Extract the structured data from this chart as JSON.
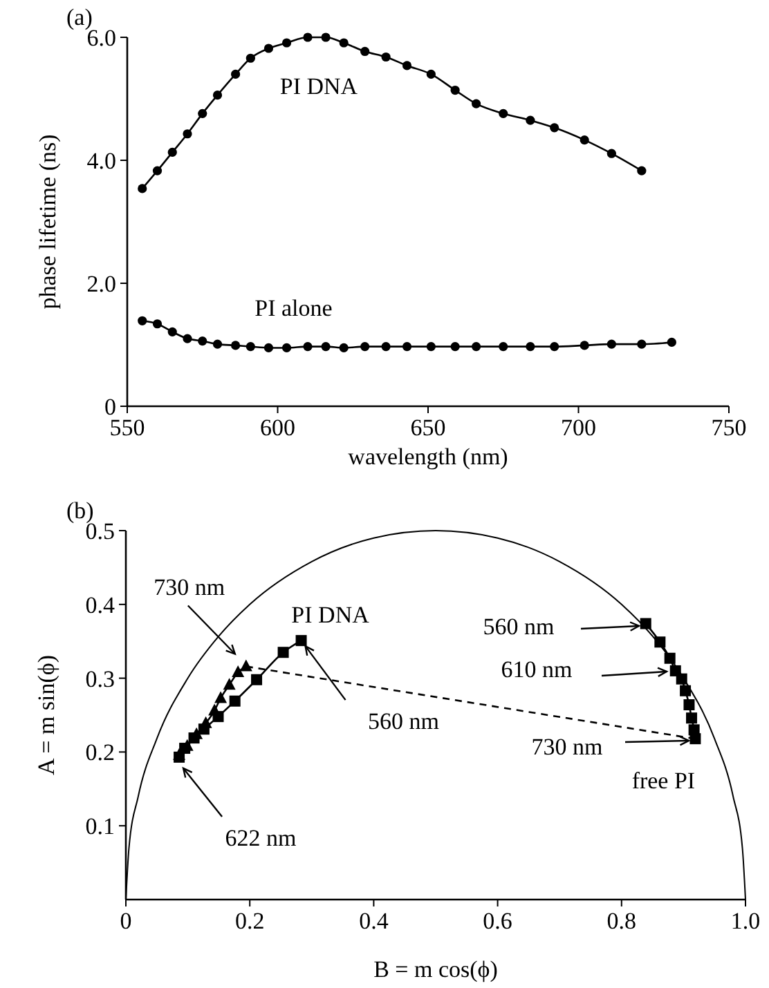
{
  "chart_data": [
    {
      "type": "line",
      "title": "(a)",
      "xlabel": "wavelength (nm)",
      "ylabel": "phase lifetime (ns)",
      "xlim": [
        550,
        750
      ],
      "xticks": [
        550,
        600,
        650,
        700,
        750
      ],
      "ylim": [
        0,
        6
      ],
      "yticks": [
        0,
        {
          "value": 2,
          "label": "2.0"
        },
        {
          "value": 4,
          "label": "4.0"
        },
        {
          "value": 6,
          "label": "6.0"
        }
      ],
      "grid": false,
      "marker": "circle",
      "line_style": "solid",
      "series": [
        {
          "name": "PI DNA",
          "color": "#000000",
          "x": [
            555,
            560,
            565,
            570,
            575,
            580,
            586,
            591,
            597,
            603,
            610,
            616,
            622,
            629,
            636,
            643,
            651,
            659,
            666,
            675,
            684,
            692,
            702,
            711,
            721
          ],
          "values": [
            3.54,
            3.83,
            4.13,
            4.43,
            4.76,
            5.06,
            5.4,
            5.66,
            5.82,
            5.91,
            6.0,
            6.0,
            5.91,
            5.77,
            5.68,
            5.54,
            5.4,
            5.14,
            4.92,
            4.76,
            4.65,
            4.53,
            4.33,
            4.11,
            3.83
          ]
        },
        {
          "name": "PI alone",
          "color": "#000000",
          "x": [
            555,
            560,
            565,
            570,
            575,
            580,
            586,
            591,
            597,
            603,
            610,
            616,
            622,
            629,
            636,
            643,
            651,
            659,
            666,
            675,
            684,
            692,
            702,
            711,
            721,
            731
          ],
          "values": [
            1.39,
            1.34,
            1.21,
            1.1,
            1.06,
            1.01,
            0.99,
            0.97,
            0.95,
            0.95,
            0.97,
            0.97,
            0.95,
            0.97,
            0.97,
            0.97,
            0.97,
            0.97,
            0.97,
            0.97,
            0.97,
            0.97,
            0.99,
            1.01,
            1.01,
            1.04
          ]
        }
      ]
    },
    {
      "type": "line",
      "title": "(b)",
      "xlabel": "B = m cos(ϕ)",
      "ylabel": "A = m sin(ϕ)",
      "xlim": [
        0,
        1
      ],
      "xticks": [
        0,
        {
          "value": 0.2,
          "label": "0.2"
        },
        {
          "value": 0.4,
          "label": "0.4"
        },
        {
          "value": 0.6,
          "label": "0.6"
        },
        {
          "value": 0.8,
          "label": "0.8"
        },
        {
          "value": 1,
          "label": "1.0"
        }
      ],
      "ylim": [
        0,
        0.5
      ],
      "yticks": [
        0.1,
        0.2,
        0.3,
        0.4,
        0.5
      ],
      "grid": false,
      "series": [
        {
          "color": "#000000",
          "marker": "none",
          "line_style": "solid",
          "x": [
            0,
            0.005,
            0.02,
            0.05,
            0.1,
            0.15,
            0.2,
            0.3,
            0.4,
            0.5,
            0.6,
            0.7,
            0.8,
            0.85,
            0.9,
            0.95,
            0.98,
            0.995,
            1
          ],
          "values": [
            0,
            0.07,
            0.14,
            0.218,
            0.3,
            0.357,
            0.4,
            0.458,
            0.49,
            0.5,
            0.49,
            0.458,
            0.4,
            0.357,
            0.3,
            0.218,
            0.14,
            0.07,
            0
          ]
        },
        {
          "name": "PI DNA",
          "color": "#000000",
          "marker": "square",
          "line_style": "solid",
          "x": [
            0.283,
            0.254,
            0.211,
            0.176,
            0.149,
            0.126,
            0.11,
            0.095,
            0.086
          ],
          "values": [
            0.351,
            0.335,
            0.298,
            0.269,
            0.248,
            0.231,
            0.219,
            0.205,
            0.193
          ]
        },
        {
          "color": "#000000",
          "marker": "triangle",
          "line_style": "solid",
          "x": [
            0.086,
            0.099,
            0.114,
            0.129,
            0.143,
            0.153,
            0.167,
            0.181,
            0.194
          ],
          "values": [
            0.196,
            0.208,
            0.224,
            0.239,
            0.256,
            0.273,
            0.291,
            0.308,
            0.316
          ]
        },
        {
          "color": "#000000",
          "marker": "none",
          "line_style": "dashed",
          "x": [
            0.194,
            0.918
          ],
          "values": [
            0.316,
            0.218
          ]
        },
        {
          "name": "free PI",
          "color": "#000000",
          "marker": "square",
          "line_style": "solid",
          "x": [
            0.839,
            0.862,
            0.878,
            0.887,
            0.897,
            0.903,
            0.909,
            0.913,
            0.917,
            0.919
          ],
          "values": [
            0.374,
            0.349,
            0.327,
            0.31,
            0.299,
            0.283,
            0.264,
            0.246,
            0.23,
            0.218
          ]
        }
      ],
      "annotations": [
        {
          "text": "730 nm",
          "x": 0.194,
          "y": 0.316
        },
        {
          "text": "560 nm",
          "x": 0.283,
          "y": 0.351
        },
        {
          "text": "622 nm",
          "x": 0.086,
          "y": 0.193
        },
        "560 nm",
        "610 nm",
        "730 nm"
      ]
    }
  ]
}
